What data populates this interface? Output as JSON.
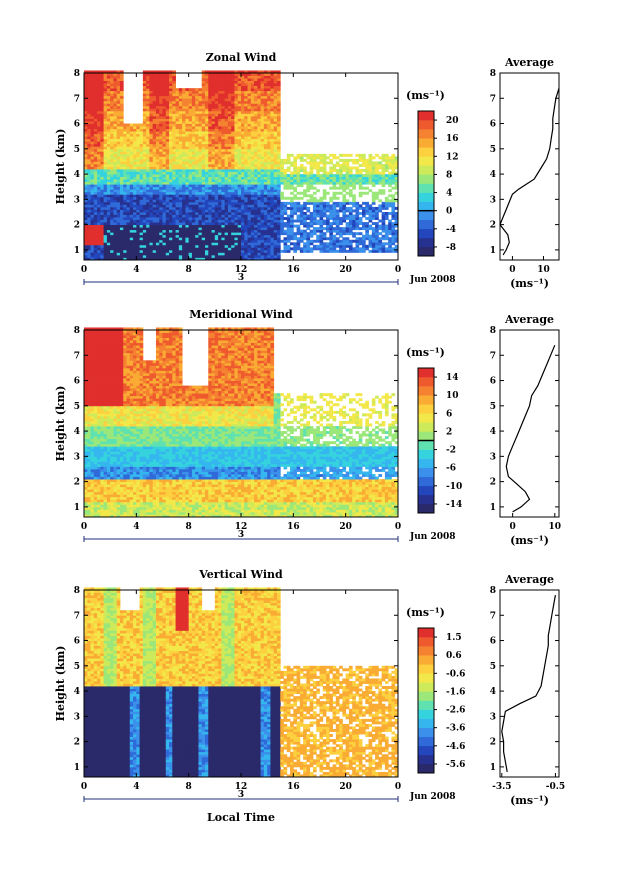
{
  "chart_data": [
    {
      "type": "heatmap",
      "title": "Zonal Wind",
      "ylabel": "Height (km)",
      "xlabel": "",
      "x_ticks": [
        "0",
        "4",
        "8",
        "12",
        "16",
        "20",
        "0"
      ],
      "xlim": [
        0,
        24
      ],
      "y_ticks": [
        "1",
        "2",
        "3",
        "4",
        "5",
        "6",
        "7",
        "8"
      ],
      "ylim": [
        0.6,
        8
      ],
      "date_marker": "3",
      "date_label": "Jun 2008",
      "colorbar": {
        "unit": "(ms⁻¹)",
        "tick_labels": [
          "20",
          "16",
          "12",
          "8",
          "4",
          "0",
          "-4",
          "-8"
        ],
        "levels": [
          -10,
          -8,
          -6,
          -4,
          -2,
          0,
          2,
          4,
          6,
          8,
          10,
          12,
          14,
          16,
          18,
          20,
          22
        ],
        "zero_value": 0
      },
      "average_profile": {
        "title": "Average",
        "xlabel": "(ms⁻¹)",
        "x_ticks": [
          "0",
          "10"
        ],
        "xlim": [
          -4,
          15
        ],
        "heights": [
          0.8,
          1.0,
          1.3,
          1.6,
          2.0,
          2.3,
          2.6,
          2.9,
          3.2,
          3.4,
          3.8,
          4.2,
          4.6,
          5.0,
          5.4,
          5.8,
          6.2,
          6.6,
          7.0,
          7.4
        ],
        "values": [
          -3,
          -2,
          -1,
          -1.5,
          -4,
          -3,
          -2,
          -1,
          0,
          2,
          7,
          9,
          11,
          12,
          12.5,
          13,
          13,
          13.5,
          14,
          15
        ]
      }
    },
    {
      "type": "heatmap",
      "title": "Meridional Wind",
      "ylabel": "Height (km)",
      "xlabel": "",
      "x_ticks": [
        "0",
        "4",
        "8",
        "12",
        "16",
        "20",
        "0"
      ],
      "xlim": [
        0,
        24
      ],
      "y_ticks": [
        "1",
        "2",
        "3",
        "4",
        "5",
        "6",
        "7",
        "8"
      ],
      "ylim": [
        0.6,
        8
      ],
      "date_marker": "3",
      "date_label": "Jun 2008",
      "colorbar": {
        "unit": "(ms⁻¹)",
        "tick_labels": [
          "14",
          "10",
          "6",
          "2",
          "-2",
          "-6",
          "-10",
          "-14"
        ],
        "levels": [
          -16,
          -14,
          -12,
          -10,
          -8,
          -6,
          -4,
          -2,
          0,
          2,
          4,
          6,
          8,
          10,
          12,
          14,
          16
        ],
        "zero_value": 0
      },
      "average_profile": {
        "title": "Average",
        "xlabel": "(ms⁻¹)",
        "x_ticks": [
          "0",
          "10"
        ],
        "xlim": [
          -3,
          11
        ],
        "heights": [
          0.8,
          1.0,
          1.3,
          1.6,
          1.9,
          2.2,
          2.6,
          3.0,
          3.4,
          3.8,
          4.2,
          4.6,
          5.0,
          5.4,
          5.8,
          6.2,
          6.6,
          7.0,
          7.4
        ],
        "values": [
          0,
          2,
          4,
          3,
          1,
          -1,
          -1.5,
          -1,
          0,
          1,
          2,
          3,
          4,
          4.5,
          6,
          7,
          8,
          9,
          10
        ]
      }
    },
    {
      "type": "heatmap",
      "title": "Vertical Wind",
      "ylabel": "Height (km)",
      "xlabel": "Local Time",
      "x_ticks": [
        "0",
        "4",
        "8",
        "12",
        "16",
        "20",
        "0"
      ],
      "xlim": [
        0,
        24
      ],
      "y_ticks": [
        "1",
        "2",
        "3",
        "4",
        "5",
        "6",
        "7",
        "8"
      ],
      "ylim": [
        0.6,
        8
      ],
      "date_marker": "3",
      "date_label": "Jun 2008",
      "colorbar": {
        "unit": "(ms⁻¹)",
        "tick_labels": [
          "1.5",
          "0.6",
          "-0.6",
          "-1.6",
          "-2.6",
          "-3.6",
          "-4.6",
          "-5.6"
        ],
        "levels": [
          -6.1,
          -5.6,
          -5.1,
          -4.6,
          -4.1,
          -3.6,
          -3.1,
          -2.6,
          -2.1,
          -1.6,
          -1.1,
          -0.6,
          -0.1,
          0.4,
          0.9,
          1.4,
          1.9
        ]
      },
      "average_profile": {
        "title": "Average",
        "xlabel": "(ms⁻¹)",
        "x_ticks": [
          "-3.5",
          "-0.5"
        ],
        "xlim": [
          -3.6,
          -0.3
        ],
        "heights": [
          0.8,
          1.2,
          1.6,
          2.0,
          2.4,
          2.8,
          3.2,
          3.5,
          3.8,
          4.2,
          4.6,
          5.0,
          5.4,
          5.8,
          6.2,
          6.6,
          7.0,
          7.4,
          7.8
        ],
        "values": [
          -3.2,
          -3.3,
          -3.4,
          -3.4,
          -3.5,
          -3.4,
          -3.3,
          -2.5,
          -1.6,
          -1.3,
          -1.2,
          -1.1,
          -1.0,
          -0.9,
          -0.9,
          -0.8,
          -0.7,
          -0.6,
          -0.5
        ]
      }
    }
  ]
}
